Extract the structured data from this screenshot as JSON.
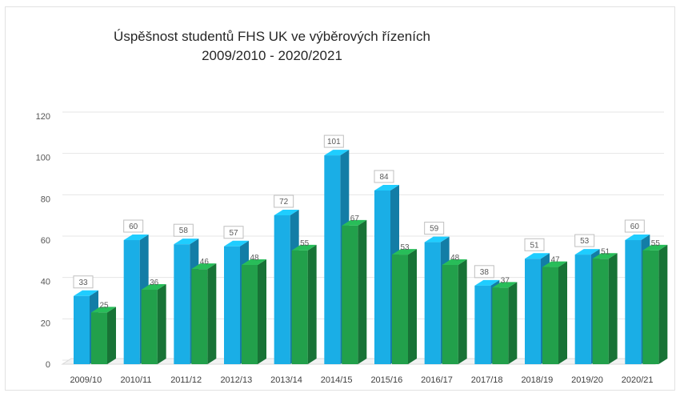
{
  "chart_data": {
    "type": "bar",
    "title": "Úspěšnost studentů FHS UK ve výběrových řízeních",
    "subtitle": "2009/2010 - 2020/2021",
    "xlabel": "",
    "ylabel": "",
    "ylim": [
      0,
      120
    ],
    "yticks": [
      0,
      20,
      40,
      60,
      80,
      100,
      120
    ],
    "ytick_labels": [
      "0",
      "20",
      "40",
      "60",
      "80",
      "100",
      "120"
    ],
    "grid": true,
    "legend": "none",
    "categories": [
      "2009/10",
      "2010/11",
      "2011/12",
      "2012/13",
      "2013/14",
      "2014/15",
      "2015/16",
      "2016/17",
      "2017/18",
      "2018/19",
      "2019/20",
      "2020/21"
    ],
    "series": [
      {
        "color": "#1aaee6",
        "values": [
          33,
          60,
          58,
          57,
          72,
          101,
          84,
          59,
          38,
          51,
          53,
          60
        ],
        "labels": [
          "33",
          "60",
          "58",
          "57",
          "72",
          "101",
          "84",
          "59",
          "38",
          "51",
          "53",
          "60"
        ]
      },
      {
        "color": "#22a04b",
        "values": [
          25,
          36,
          46,
          48,
          55,
          67,
          53,
          48,
          37,
          47,
          51,
          55
        ],
        "labels": [
          "25",
          "36",
          "46",
          "48",
          "55",
          "67",
          "53",
          "48",
          "37",
          "47",
          "51",
          "55"
        ]
      }
    ]
  }
}
